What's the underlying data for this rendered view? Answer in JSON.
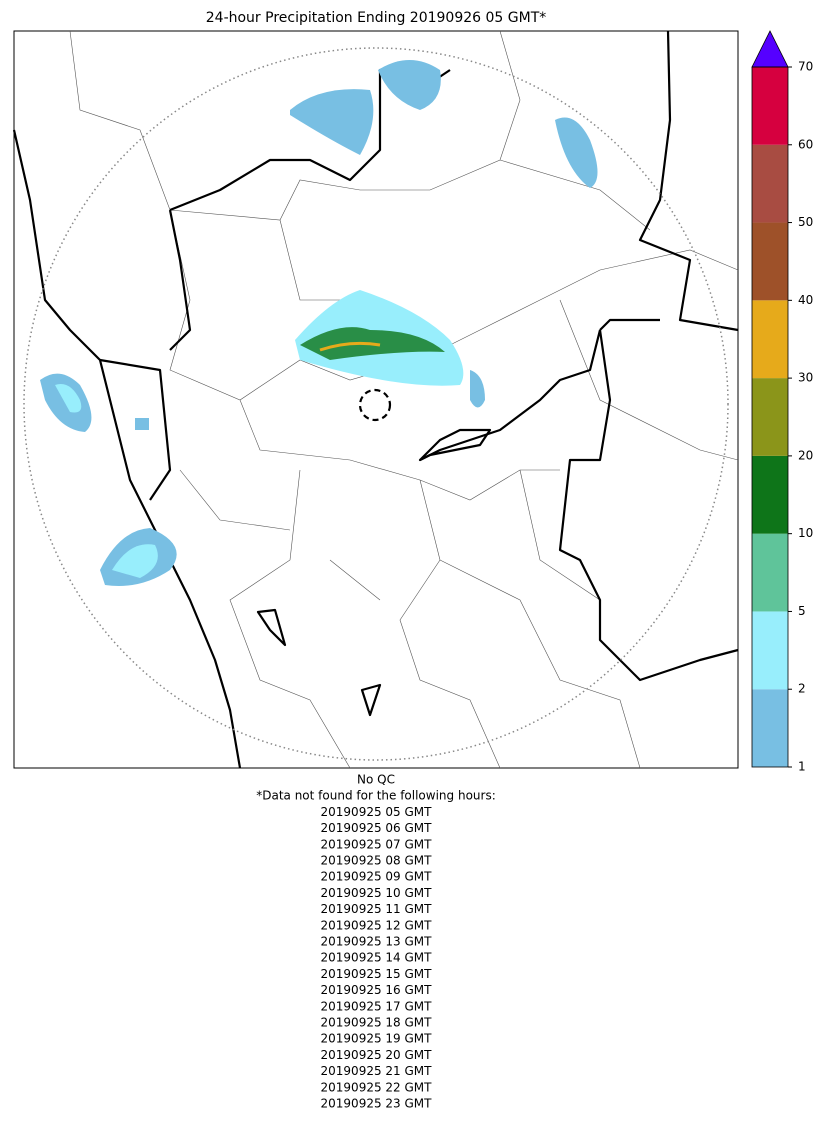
{
  "title": "24-hour Precipitation Ending 20190926 05 GMT*",
  "colorbar": {
    "bounds": [
      1,
      2,
      5,
      10,
      20,
      30,
      40,
      50,
      60,
      70
    ],
    "colors": [
      "#78bfe3",
      "#98eefc",
      "#5fc49a",
      "#0e7519",
      "#8b951a",
      "#e6aa1b",
      "#9e5129",
      "#a84c42",
      "#d6003f"
    ],
    "extend_color": "#5500ff"
  },
  "notes": [
    "No QC",
    "*Data not found for the following hours:",
    "20190925 05 GMT",
    "20190925 06 GMT",
    "20190925 07 GMT",
    "20190925 08 GMT",
    "20190925 09 GMT",
    "20190925 10 GMT",
    "20190925 11 GMT",
    "20190925 12 GMT",
    "20190925 13 GMT",
    "20190925 14 GMT",
    "20190925 15 GMT",
    "20190925 16 GMT",
    "20190925 17 GMT",
    "20190925 18 GMT",
    "20190925 19 GMT",
    "20190925 20 GMT",
    "20190925 21 GMT",
    "20190925 22 GMT",
    "20190925 23 GMT"
  ]
}
